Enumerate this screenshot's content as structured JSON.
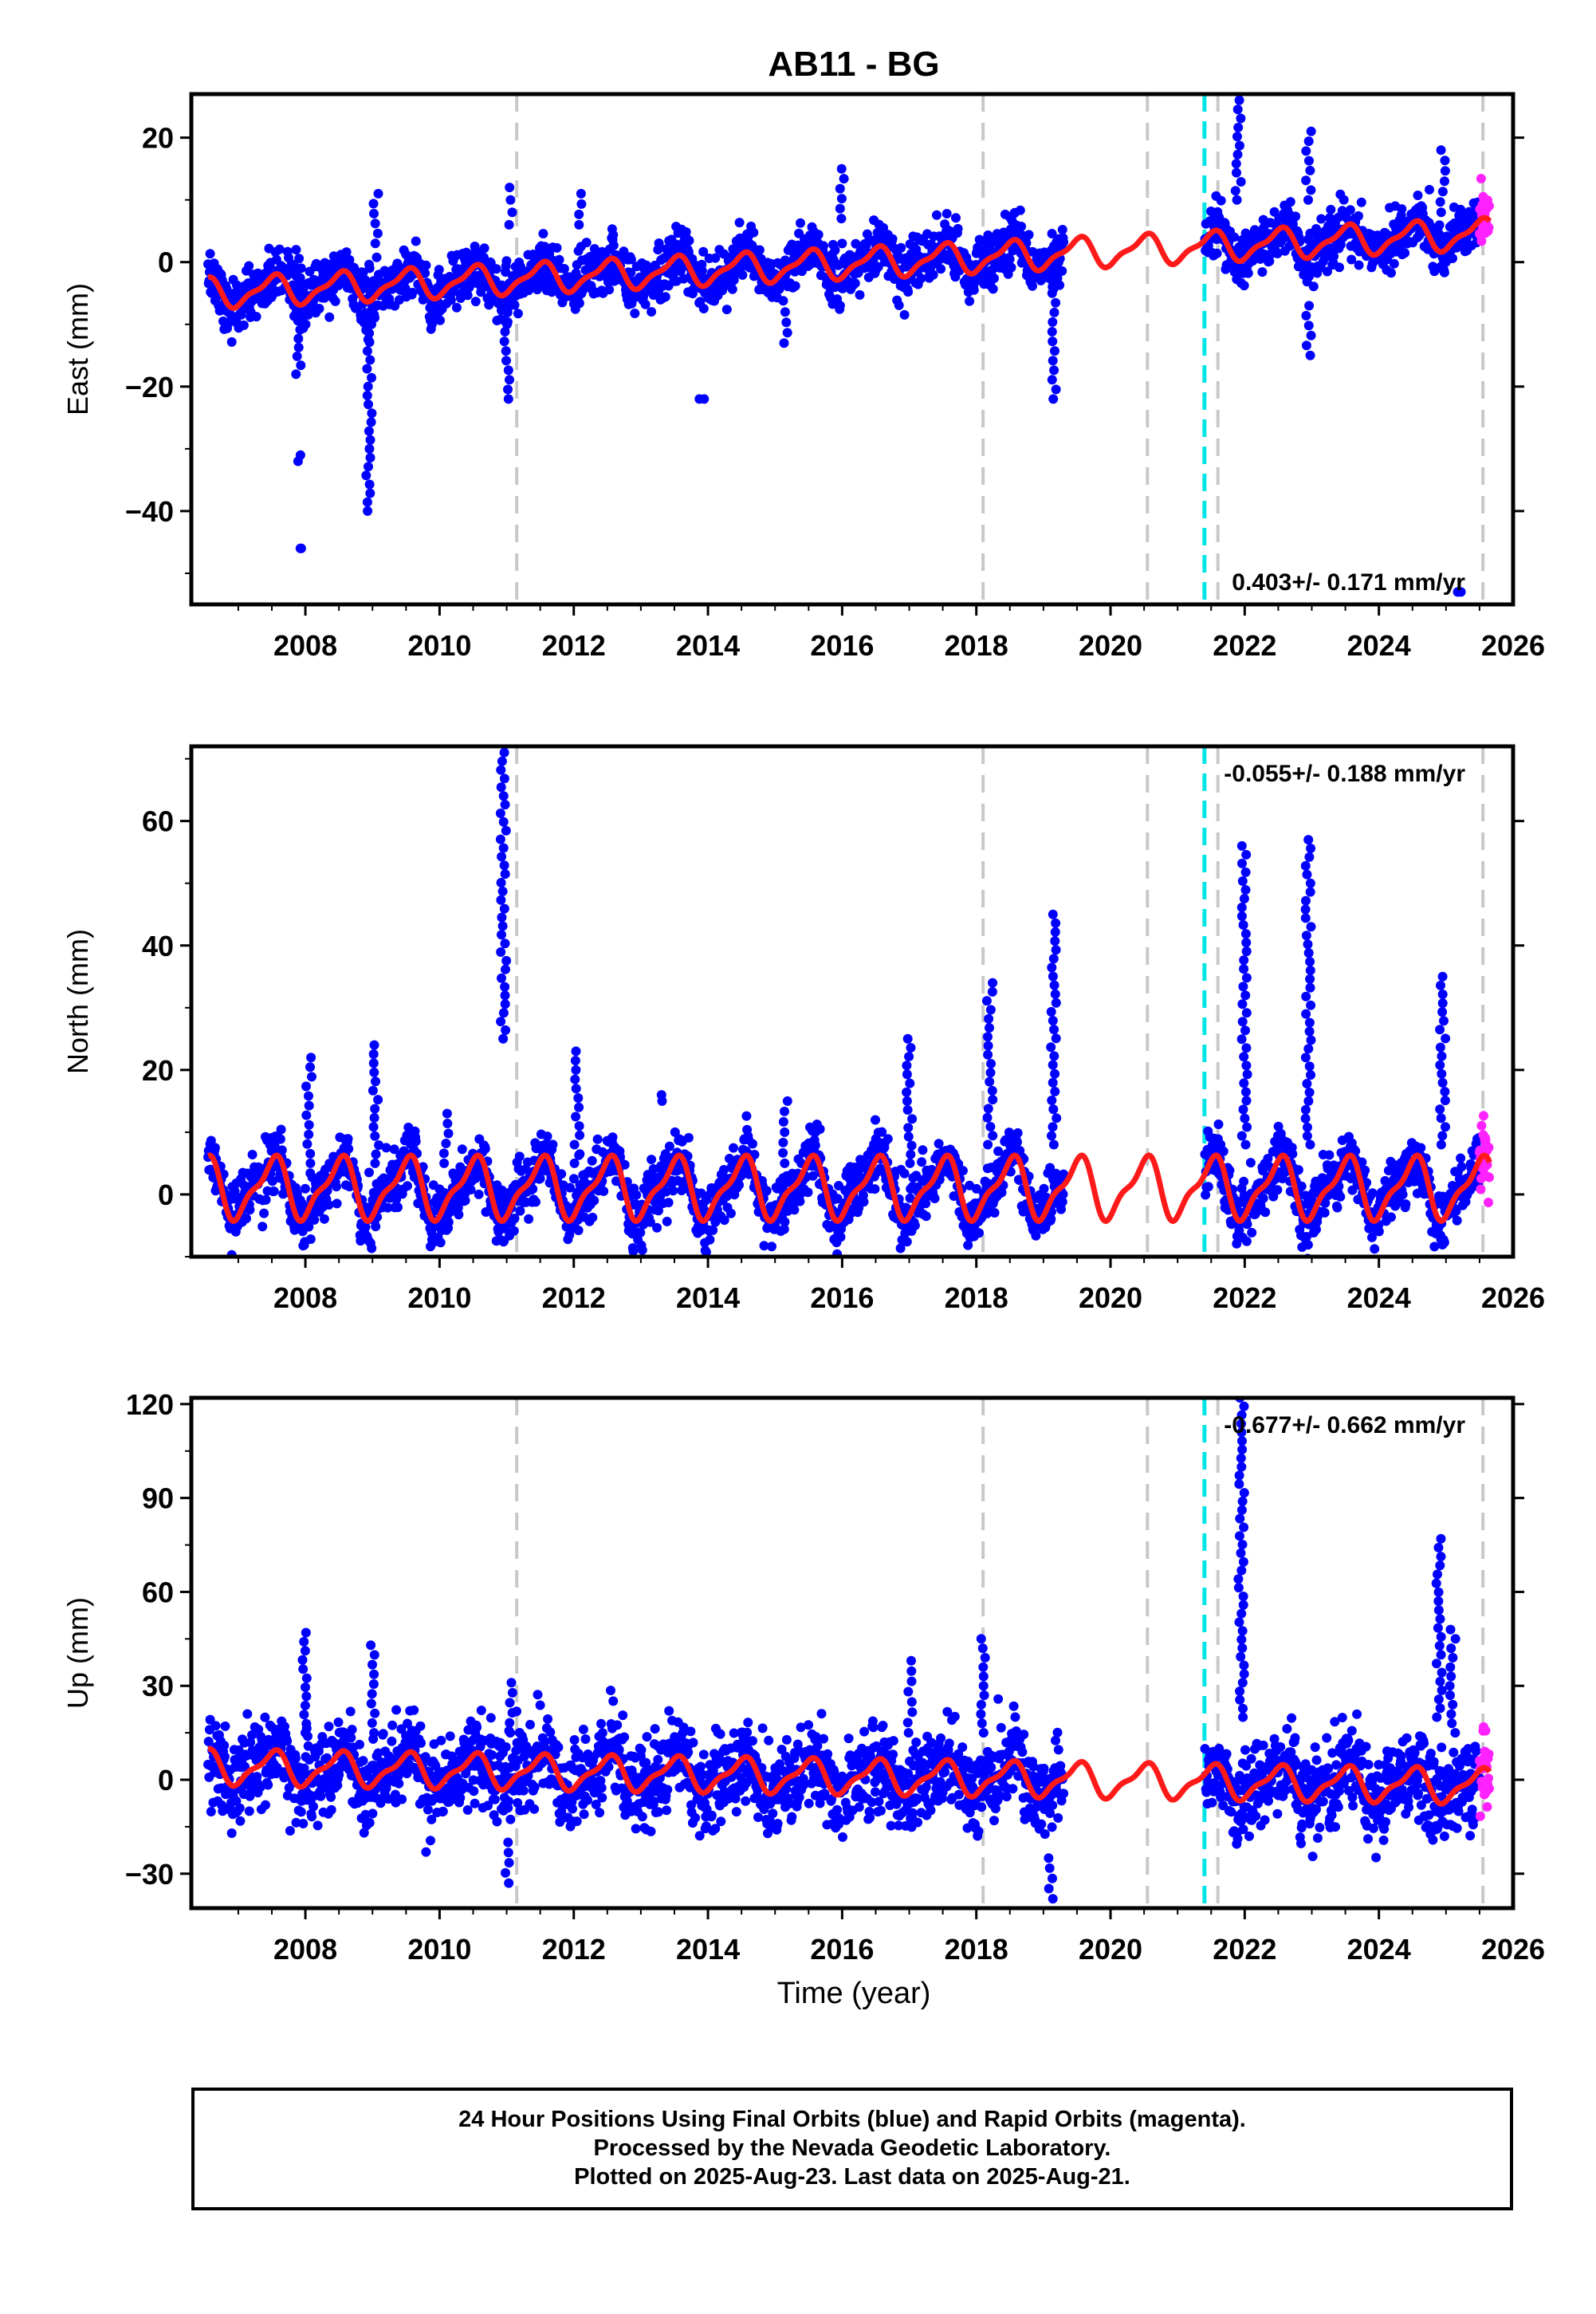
{
  "colors": {
    "final": "#0000ff",
    "rapid": "#ff22ff",
    "model": "#ff1a1a",
    "break": "#c8c8c8",
    "antenna": "#00e5e5"
  },
  "chart_data": [
    {
      "type": "scatter",
      "title": "AB11 - BG",
      "ylabel": "East (mm)",
      "xlim": [
        2006.3,
        2026.0
      ],
      "ylim": [
        -55,
        27
      ],
      "yticks": [
        20,
        0,
        -20,
        -40
      ],
      "xticks": [
        2008,
        2010,
        2012,
        2014,
        2016,
        2018,
        2020,
        2022,
        2024,
        2026
      ],
      "rate": "0.403+/- 0.171 mm/yr",
      "rate_position": "bottom-right",
      "breaks": [
        2011.15,
        2018.1,
        2020.55,
        2021.6,
        2025.55
      ],
      "antenna_change": 2021.4,
      "final_range": [
        2006.55,
        2025.5
      ],
      "rapid_range": [
        2025.5,
        2025.65
      ],
      "gap": [
        2019.3,
        2021.4
      ],
      "model": {
        "trend": [
          -5,
          4.5
        ],
        "annual_amp": 2.2,
        "noise": 2.2
      },
      "series": [
        {
          "name": "Final Orbits",
          "color": "blue"
        },
        {
          "name": "Rapid Orbits",
          "color": "magenta"
        }
      ],
      "spikes": [
        {
          "t": 2007.9,
          "lo": -18,
          "hi": 2
        },
        {
          "t": 2007.9,
          "lo": -32,
          "hi": -31
        },
        {
          "t": 2007.9,
          "lo": -46,
          "hi": -46
        },
        {
          "t": 2008.95,
          "lo": -40,
          "hi": -10
        },
        {
          "t": 2009.05,
          "lo": 3,
          "hi": 11
        },
        {
          "t": 2011.0,
          "lo": -22,
          "hi": -5
        },
        {
          "t": 2011.05,
          "lo": 6,
          "hi": 12
        },
        {
          "t": 2012.1,
          "lo": 6,
          "hi": 11
        },
        {
          "t": 2013.9,
          "lo": -22,
          "hi": -22
        },
        {
          "t": 2015.15,
          "lo": -13,
          "hi": -8
        },
        {
          "t": 2016.0,
          "lo": 7,
          "hi": 15
        },
        {
          "t": 2019.15,
          "lo": -22,
          "hi": -5
        },
        {
          "t": 2021.9,
          "lo": 10,
          "hi": 26
        },
        {
          "t": 2022.95,
          "lo": -15,
          "hi": -7
        },
        {
          "t": 2022.95,
          "lo": 10,
          "hi": 21
        },
        {
          "t": 2024.95,
          "lo": 8,
          "hi": 18
        },
        {
          "t": 2025.2,
          "lo": -53,
          "hi": -53
        }
      ]
    },
    {
      "type": "scatter",
      "ylabel": "North (mm)",
      "xlim": [
        2006.3,
        2026.0
      ],
      "ylim": [
        -10,
        72
      ],
      "yticks": [
        60,
        40,
        20,
        0
      ],
      "xticks": [
        2008,
        2010,
        2012,
        2014,
        2016,
        2018,
        2020,
        2022,
        2024,
        2026
      ],
      "rate": "-0.055+/- 0.188 mm/yr",
      "rate_position": "top-right",
      "breaks": [
        2011.15,
        2018.1,
        2020.55,
        2021.6,
        2025.55
      ],
      "antenna_change": 2021.4,
      "final_range": [
        2006.55,
        2025.5
      ],
      "rapid_range": [
        2025.5,
        2025.65
      ],
      "gap": [
        2019.3,
        2021.4
      ],
      "model": {
        "trend": [
          1,
          1
        ],
        "annual_amp": 4.5,
        "noise": 2.4
      },
      "series": [
        {
          "name": "Final Orbits",
          "color": "blue"
        },
        {
          "name": "Rapid Orbits",
          "color": "magenta"
        }
      ],
      "spikes": [
        {
          "t": 2008.05,
          "lo": 5,
          "hi": 22
        },
        {
          "t": 2009.05,
          "lo": 5,
          "hi": 24
        },
        {
          "t": 2010.1,
          "lo": 5,
          "hi": 13
        },
        {
          "t": 2010.95,
          "lo": 25,
          "hi": 71
        },
        {
          "t": 2012.05,
          "lo": 5,
          "hi": 23
        },
        {
          "t": 2013.3,
          "lo": 15,
          "hi": 16
        },
        {
          "t": 2015.15,
          "lo": 5,
          "hi": 15
        },
        {
          "t": 2017.0,
          "lo": 5,
          "hi": 25
        },
        {
          "t": 2018.2,
          "lo": 8,
          "hi": 34
        },
        {
          "t": 2019.15,
          "lo": 8,
          "hi": 45
        },
        {
          "t": 2022.0,
          "lo": 8,
          "hi": 56
        },
        {
          "t": 2022.95,
          "lo": 8,
          "hi": 57
        },
        {
          "t": 2024.95,
          "lo": 8,
          "hi": 35
        }
      ]
    },
    {
      "type": "scatter",
      "xlabel": "Time (year)",
      "ylabel": "Up (mm)",
      "xlim": [
        2006.3,
        2026.0
      ],
      "ylim": [
        -41,
        122
      ],
      "yticks": [
        120,
        90,
        60,
        30,
        0,
        -30
      ],
      "xticks": [
        2008,
        2010,
        2012,
        2014,
        2016,
        2018,
        2020,
        2022,
        2024,
        2026
      ],
      "rate": "-0.677+/- 0.662 mm/yr",
      "rate_position": "top-right",
      "breaks": [
        2011.15,
        2018.1,
        2020.55,
        2021.6,
        2025.55
      ],
      "antenna_change": 2021.4,
      "final_range": [
        2006.55,
        2025.5
      ],
      "rapid_range": [
        2025.5,
        2025.65
      ],
      "gap": [
        2019.3,
        2021.4
      ],
      "model": {
        "trend": [
          4,
          -2
        ],
        "annual_amp": 5,
        "noise": 7
      },
      "series": [
        {
          "name": "Final Orbits",
          "color": "blue"
        },
        {
          "name": "Rapid Orbits",
          "color": "magenta"
        }
      ],
      "spikes": [
        {
          "t": 2008.0,
          "lo": 15,
          "hi": 47
        },
        {
          "t": 2009.0,
          "lo": 15,
          "hi": 43
        },
        {
          "t": 2011.0,
          "lo": -33,
          "hi": -20
        },
        {
          "t": 2011.05,
          "lo": 15,
          "hi": 31
        },
        {
          "t": 2017.0,
          "lo": 15,
          "hi": 38
        },
        {
          "t": 2018.1,
          "lo": 15,
          "hi": 45
        },
        {
          "t": 2019.1,
          "lo": -38,
          "hi": -25
        },
        {
          "t": 2021.95,
          "lo": 20,
          "hi": 122
        },
        {
          "t": 2024.9,
          "lo": 20,
          "hi": 77
        },
        {
          "t": 2025.1,
          "lo": 15,
          "hi": 48
        }
      ]
    }
  ],
  "caption": {
    "line1": "24 Hour Positions Using Final Orbits (blue) and Rapid Orbits (magenta).",
    "line2": "Processed by the Nevada Geodetic Laboratory.",
    "line3": "Plotted on 2025-Aug-23. Last data on 2025-Aug-21."
  }
}
